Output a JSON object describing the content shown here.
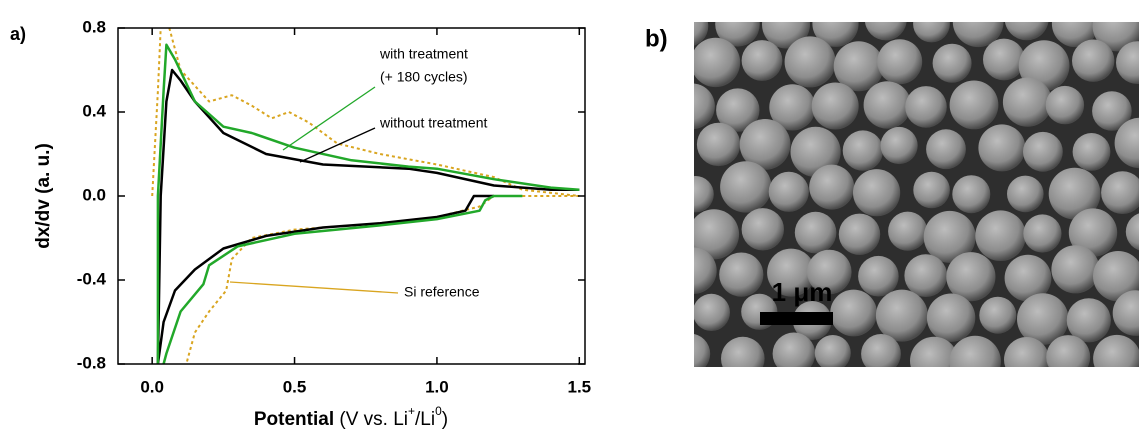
{
  "chart_data": {
    "type": "line",
    "panel_label": "a)",
    "ylabel": "dx/dv (a. u.)",
    "xlabel": {
      "main": "Potential",
      "parts": [
        "(V vs. Li",
        "+",
        "/Li",
        "0",
        ")"
      ]
    },
    "xlim": [
      -0.12,
      1.52
    ],
    "xticks": [
      {
        "value": 0,
        "label": "0.0"
      },
      {
        "value": 0.5,
        "label": "0.5"
      },
      {
        "value": 1,
        "label": "1.0"
      },
      {
        "value": 1.5,
        "label": "1.5"
      }
    ],
    "ylim": [
      -0.8,
      0.8
    ],
    "yticks": [
      {
        "value": -0.8,
        "label": "-0.8"
      },
      {
        "value": -0.4,
        "label": "-0.4"
      },
      {
        "value": 0,
        "label": "0.0"
      },
      {
        "value": 0.4,
        "label": "0.4"
      },
      {
        "value": 0.8,
        "label": "0.8"
      }
    ],
    "annotations": [
      "with treatment",
      "(+ 180 cycles)",
      "without treatment",
      "Si reference"
    ],
    "series": [
      {
        "color": "#d9a520",
        "dash": true,
        "x": [
          0.0,
          0.02,
          0.03,
          null,
          0.06,
          0.1,
          0.2,
          0.28,
          0.35,
          0.42,
          0.48,
          0.55,
          0.65,
          0.8,
          1.0,
          1.2,
          1.3,
          1.5,
          null,
          1.5,
          1.2,
          1.15,
          1.0,
          0.8,
          0.5,
          0.35,
          0.28,
          0.26,
          0.2,
          0.15,
          0.12
        ],
        "values": [
          0.0,
          0.5,
          0.8,
          null,
          0.8,
          0.6,
          0.45,
          0.48,
          0.43,
          0.37,
          0.4,
          0.35,
          0.25,
          0.2,
          0.15,
          0.09,
          0.03,
          0.0,
          null,
          0.0,
          0.0,
          -0.05,
          -0.1,
          -0.13,
          -0.16,
          -0.2,
          -0.3,
          -0.45,
          -0.55,
          -0.65,
          -0.8
        ]
      },
      {
        "color": "#000000",
        "dash": false,
        "x": [
          0.02,
          0.03,
          0.05,
          0.07,
          0.1,
          0.15,
          0.25,
          0.4,
          0.6,
          0.9,
          1.0,
          1.2,
          1.4,
          1.5,
          null,
          1.2,
          1.13,
          1.1,
          1.0,
          0.8,
          0.6,
          0.4,
          0.25,
          0.15,
          0.08,
          0.04,
          0.02
        ],
        "values": [
          -0.8,
          0.0,
          0.45,
          0.6,
          0.55,
          0.45,
          0.3,
          0.2,
          0.15,
          0.13,
          0.11,
          0.05,
          0.03,
          0.03,
          null,
          0.0,
          0.0,
          -0.07,
          -0.1,
          -0.13,
          -0.15,
          -0.19,
          -0.25,
          -0.35,
          -0.45,
          -0.6,
          -0.8
        ]
      },
      {
        "color": "#22a82a",
        "dash": false,
        "x": [
          0.02,
          0.02,
          0.04,
          0.05,
          0.08,
          0.15,
          0.25,
          0.35,
          0.5,
          0.7,
          0.9,
          1.0,
          1.2,
          1.4,
          1.5,
          null,
          1.3,
          1.2,
          1.17,
          1.15,
          1.0,
          0.8,
          0.5,
          0.3,
          0.2,
          0.18,
          0.1,
          0.05,
          0.04
        ],
        "values": [
          -0.8,
          0.0,
          0.5,
          0.72,
          0.65,
          0.45,
          0.33,
          0.3,
          0.23,
          0.17,
          0.14,
          0.13,
          0.08,
          0.04,
          0.03,
          null,
          0.0,
          0.0,
          -0.02,
          -0.07,
          -0.11,
          -0.14,
          -0.18,
          -0.24,
          -0.33,
          -0.42,
          -0.55,
          -0.75,
          -0.8
        ]
      }
    ]
  },
  "image": {
    "panel_label": "b)",
    "scale_bar": "1 μm"
  }
}
